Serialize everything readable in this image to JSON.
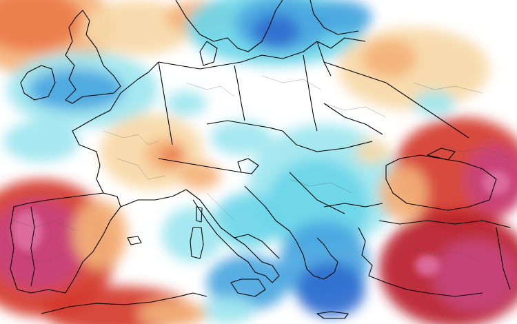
{
  "map": {
    "kind": "temperature-anomaly",
    "region": "Europe",
    "colors": {
      "background": "#ffffff",
      "light_orange": "#f7d9a8",
      "orange": "#f4b27a",
      "red_orange": "#ec7a4a",
      "red": "#d43a2c",
      "dark_red": "#b81f2b",
      "magenta": "#c9447c",
      "pink": "#dd6fa0",
      "light_blue": "#9ee6ef",
      "cyan": "#6cd6e8",
      "blue": "#4aa6e0",
      "dark_blue": "#2f6fcf",
      "border_country": "#000000",
      "border_region": "#555555"
    }
  }
}
